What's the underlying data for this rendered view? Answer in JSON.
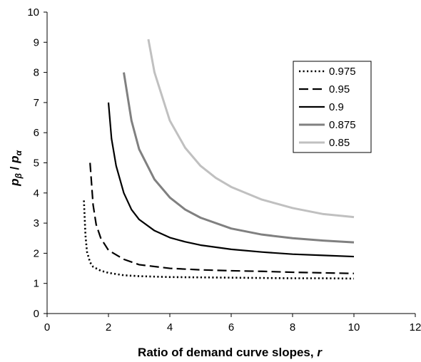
{
  "chart_data": {
    "type": "line",
    "title": "",
    "xlabel_main": "Ratio of demand curve slopes, ",
    "xlabel_var": "r",
    "ylabel_p": "p",
    "ylabel_sub1": "β",
    "ylabel_slash": " / ",
    "ylabel_sub2": "α",
    "xlim": [
      0,
      12
    ],
    "ylim": [
      0,
      10
    ],
    "x_ticks": [
      "0",
      "2",
      "4",
      "6",
      "8",
      "10",
      "12"
    ],
    "y_ticks": [
      "0",
      "1",
      "2",
      "3",
      "4",
      "5",
      "6",
      "7",
      "8",
      "9",
      "10"
    ],
    "grid": false,
    "legend_position": "top-right",
    "series": [
      {
        "name": "0.975",
        "color": "#000000",
        "dash": "dotted",
        "points": [
          [
            1.2,
            3.75
          ],
          [
            1.25,
            2.6
          ],
          [
            1.3,
            2.05
          ],
          [
            1.4,
            1.7
          ],
          [
            1.5,
            1.55
          ],
          [
            1.75,
            1.42
          ],
          [
            2,
            1.35
          ],
          [
            2.5,
            1.27
          ],
          [
            3,
            1.24
          ],
          [
            4,
            1.21
          ],
          [
            5,
            1.2
          ],
          [
            6,
            1.19
          ],
          [
            7,
            1.18
          ],
          [
            8,
            1.17
          ],
          [
            9,
            1.17
          ],
          [
            10,
            1.16
          ]
        ]
      },
      {
        "name": "0.95",
        "color": "#000000",
        "dash": "dashed",
        "points": [
          [
            1.4,
            5.0
          ],
          [
            1.5,
            3.6
          ],
          [
            1.6,
            2.95
          ],
          [
            1.75,
            2.5
          ],
          [
            2,
            2.1
          ],
          [
            2.5,
            1.8
          ],
          [
            3,
            1.62
          ],
          [
            4,
            1.5
          ],
          [
            5,
            1.45
          ],
          [
            6,
            1.42
          ],
          [
            7,
            1.4
          ],
          [
            8,
            1.37
          ],
          [
            9,
            1.35
          ],
          [
            10,
            1.33
          ]
        ]
      },
      {
        "name": "0.9",
        "color": "#000000",
        "dash": "solid",
        "points": [
          [
            2,
            7.0
          ],
          [
            2.1,
            5.8
          ],
          [
            2.25,
            4.9
          ],
          [
            2.5,
            4.0
          ],
          [
            2.75,
            3.45
          ],
          [
            3,
            3.12
          ],
          [
            3.5,
            2.75
          ],
          [
            4,
            2.52
          ],
          [
            4.5,
            2.38
          ],
          [
            5,
            2.27
          ],
          [
            6,
            2.13
          ],
          [
            7,
            2.04
          ],
          [
            8,
            1.97
          ],
          [
            9,
            1.93
          ],
          [
            10,
            1.89
          ]
        ]
      },
      {
        "name": "0.875",
        "color": "#808080",
        "dash": "solid",
        "points": [
          [
            2.5,
            8.0
          ],
          [
            2.75,
            6.4
          ],
          [
            3,
            5.45
          ],
          [
            3.5,
            4.45
          ],
          [
            4,
            3.85
          ],
          [
            4.5,
            3.45
          ],
          [
            5,
            3.18
          ],
          [
            6,
            2.82
          ],
          [
            7,
            2.62
          ],
          [
            8,
            2.5
          ],
          [
            9,
            2.42
          ],
          [
            10,
            2.36
          ]
        ]
      },
      {
        "name": "0.85",
        "color": "#c0c0c0",
        "dash": "solid",
        "points": [
          [
            3.3,
            9.1
          ],
          [
            3.5,
            8.0
          ],
          [
            4,
            6.4
          ],
          [
            4.5,
            5.5
          ],
          [
            5,
            4.9
          ],
          [
            5.5,
            4.5
          ],
          [
            6,
            4.2
          ],
          [
            7,
            3.78
          ],
          [
            8,
            3.5
          ],
          [
            9,
            3.3
          ],
          [
            10,
            3.2
          ]
        ]
      }
    ]
  }
}
